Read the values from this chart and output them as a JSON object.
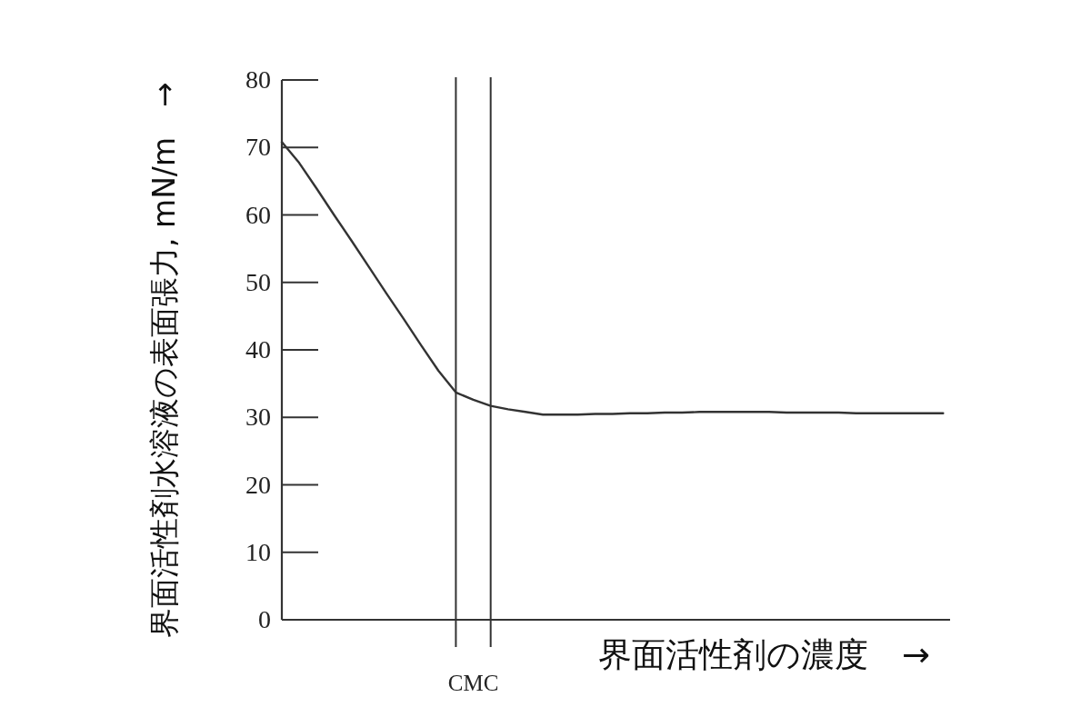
{
  "chart_data": {
    "type": "line",
    "xlabel": "界面活性剤の濃度　→",
    "ylabel": "界面活性剤水溶液の表面張力, mN/m　→",
    "categories": [
      null,
      null,
      null,
      null,
      null,
      null,
      null,
      null,
      null,
      null,
      null,
      "CMC",
      null,
      null,
      null,
      null,
      null,
      null,
      null,
      null,
      null,
      null,
      null,
      null,
      null,
      null,
      null,
      null,
      null,
      null,
      null,
      null,
      null,
      null,
      null,
      null,
      null,
      null,
      null
    ],
    "values": [
      70.8,
      67.7,
      63.9,
      60.0,
      56.2,
      52.3,
      48.4,
      44.6,
      40.7,
      36.9,
      33.7,
      32.6,
      31.7,
      31.2,
      30.8,
      30.4,
      30.4,
      30.4,
      30.5,
      30.5,
      30.6,
      30.6,
      30.7,
      30.7,
      30.8,
      30.8,
      30.8,
      30.8,
      30.8,
      30.7,
      30.7,
      30.7,
      30.7,
      30.6,
      30.6,
      30.6,
      30.6,
      30.6,
      30.6
    ],
    "color": "#333333",
    "ylim": [
      0,
      80
    ],
    "yticks": [
      0,
      10,
      20,
      30,
      40,
      50,
      60,
      70,
      80
    ]
  }
}
